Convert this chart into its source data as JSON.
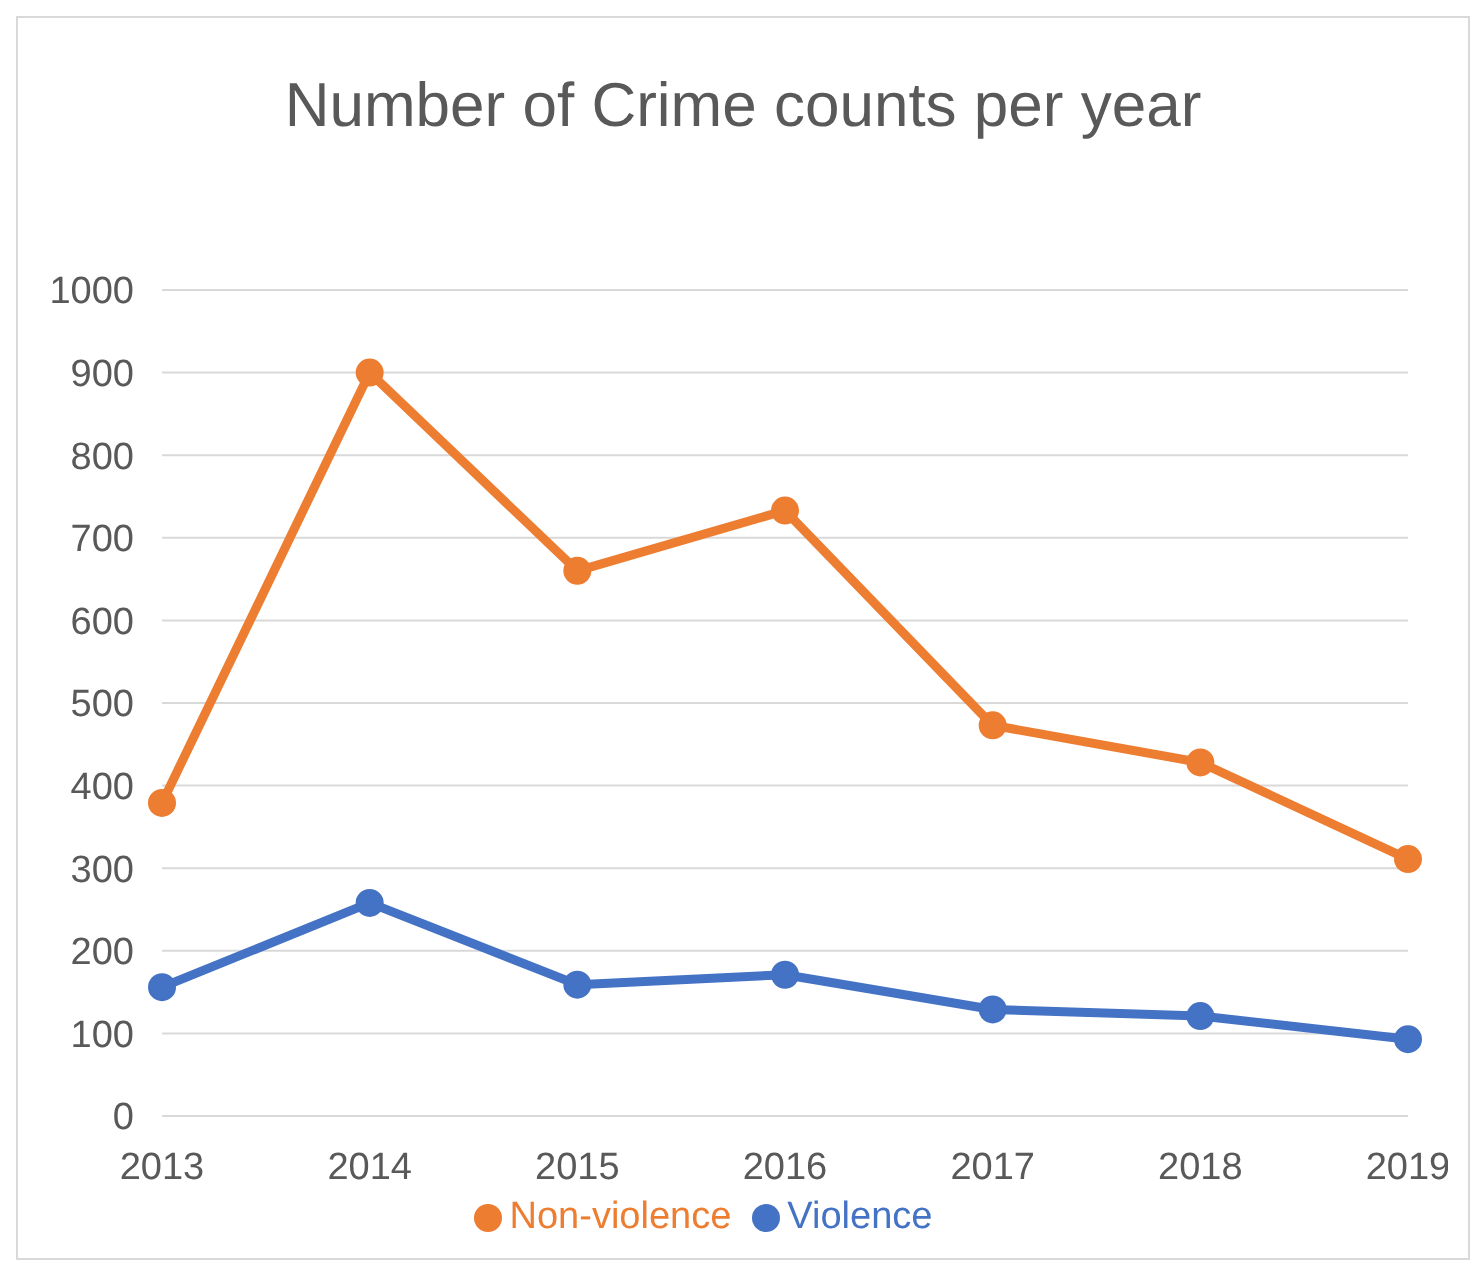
{
  "chart_data": {
    "type": "line",
    "title": "Number of Crime counts per year",
    "categories": [
      "2013",
      "2014",
      "2015",
      "2016",
      "2017",
      "2018",
      "2019"
    ],
    "series": [
      {
        "name": "Violence",
        "color": "#4472c4",
        "values": [
          156,
          258,
          159,
          171,
          129,
          121,
          93
        ]
      },
      {
        "name": "Non-violence",
        "color": "#ed7d31",
        "values": [
          379,
          900,
          660,
          733,
          473,
          428,
          311
        ]
      }
    ],
    "ylim": [
      0,
      1000
    ],
    "yticks": [
      0,
      100,
      200,
      300,
      400,
      500,
      600,
      700,
      800,
      900,
      1000
    ],
    "grid": "y",
    "legend": "bottom",
    "marker": "circle",
    "line_style": "solid"
  }
}
